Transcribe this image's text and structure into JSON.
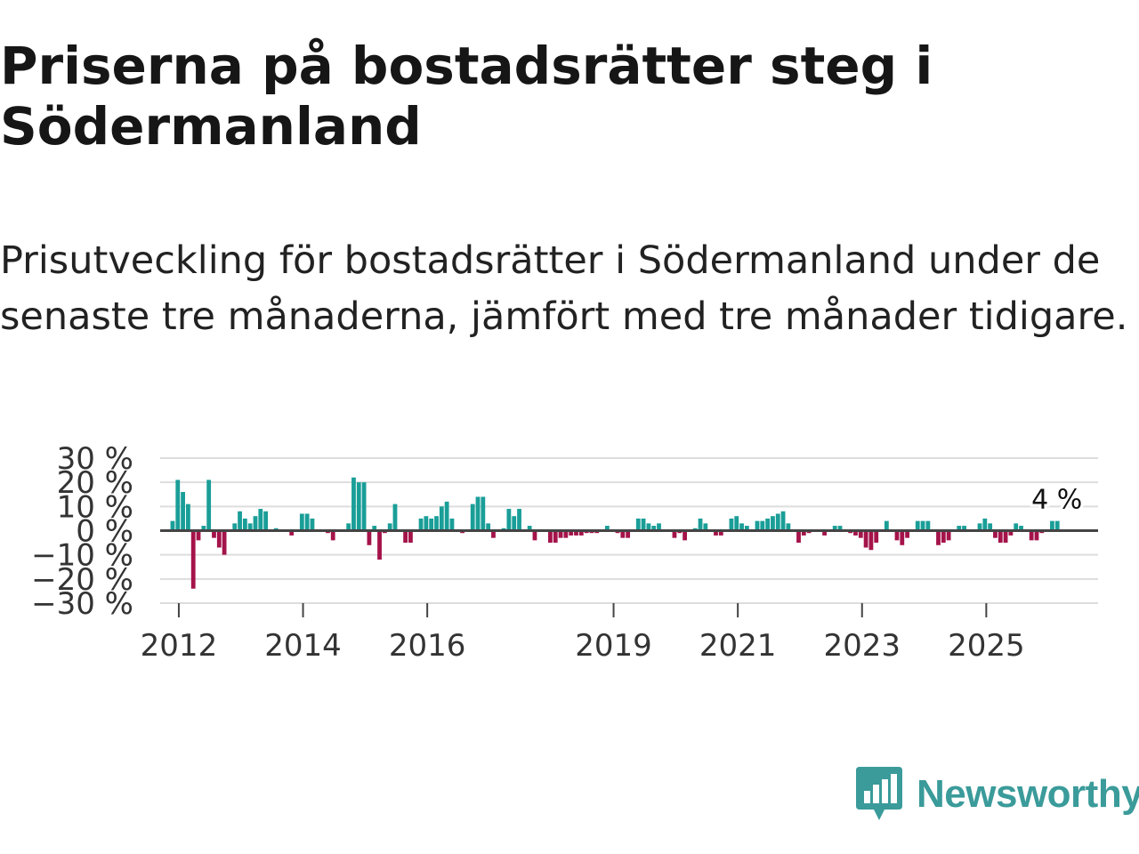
{
  "title": "Priserna på bostadsrätter steg i Södermanland",
  "subtitle": "Prisutveckling för bostadsrätter i Södermanland under de senaste tre månaderna, jämfört med tre månader tidigare.",
  "brand": {
    "name": "Newsworthy",
    "color": "#3a9b9a"
  },
  "colors": {
    "positive": "#1a9e98",
    "negative": "#a4134a",
    "zero_line": "#444444",
    "grid": "#dddddd"
  },
  "chart_data": {
    "type": "bar",
    "title": "Priserna på bostadsrätter steg i Södermanland",
    "xlabel": "",
    "ylabel": "",
    "ylim": [
      -30,
      30
    ],
    "y_ticks": [
      30,
      20,
      10,
      0,
      -10,
      -20,
      -30
    ],
    "y_tick_labels": [
      "30 %",
      "20 %",
      "10 %",
      "0 %",
      "−10 %",
      "−20 %",
      "−30 %"
    ],
    "x_ticks": [
      2012,
      2014,
      2016,
      2019,
      2021,
      2023,
      2025
    ],
    "x_tick_labels": [
      "2012",
      "2014",
      "2016",
      "2019",
      "2021",
      "2023",
      "2025"
    ],
    "x_start": 2011.9,
    "x_step": 0.0833,
    "annotation": {
      "label": "4 %",
      "value": 4
    },
    "values": [
      4,
      21,
      16,
      11,
      -24,
      -4,
      2,
      21,
      -3,
      -7,
      -10,
      0,
      3,
      8,
      5,
      3,
      6,
      9,
      8,
      0,
      1,
      0,
      0,
      -2,
      0,
      7,
      7,
      5,
      0,
      0,
      -1,
      -4,
      0,
      0,
      3,
      22,
      20,
      20,
      -6,
      2,
      -12,
      -1,
      3,
      11,
      0,
      -5,
      -5,
      0,
      5,
      6,
      5,
      6,
      10,
      12,
      5,
      0,
      -1,
      0,
      11,
      14,
      14,
      3,
      -3,
      0,
      1,
      9,
      6,
      9,
      0,
      2,
      -4,
      0,
      0,
      -5,
      -5,
      -3,
      -3,
      -2,
      -2,
      -2,
      -1,
      -1,
      -1,
      0,
      2,
      0,
      -1,
      -3,
      -3,
      0,
      5,
      5,
      3,
      2,
      3,
      0,
      0,
      -3,
      -1,
      -4,
      0,
      1,
      5,
      3,
      0,
      -2,
      -2,
      0,
      5,
      6,
      3,
      2,
      0,
      4,
      4,
      5,
      6,
      7,
      8,
      3,
      0,
      -5,
      -2,
      -1,
      0,
      0,
      -2,
      0,
      2,
      2,
      0,
      -1,
      -2,
      -3,
      -7,
      -8,
      -5,
      0,
      4,
      0,
      -4,
      -6,
      -3,
      0,
      4,
      4,
      4,
      0,
      -6,
      -5,
      -4,
      0,
      2,
      2,
      0,
      0,
      3,
      5,
      3,
      -3,
      -5,
      -5,
      -2,
      3,
      2,
      0,
      -4,
      -4,
      -1,
      0,
      4,
      4
    ]
  }
}
